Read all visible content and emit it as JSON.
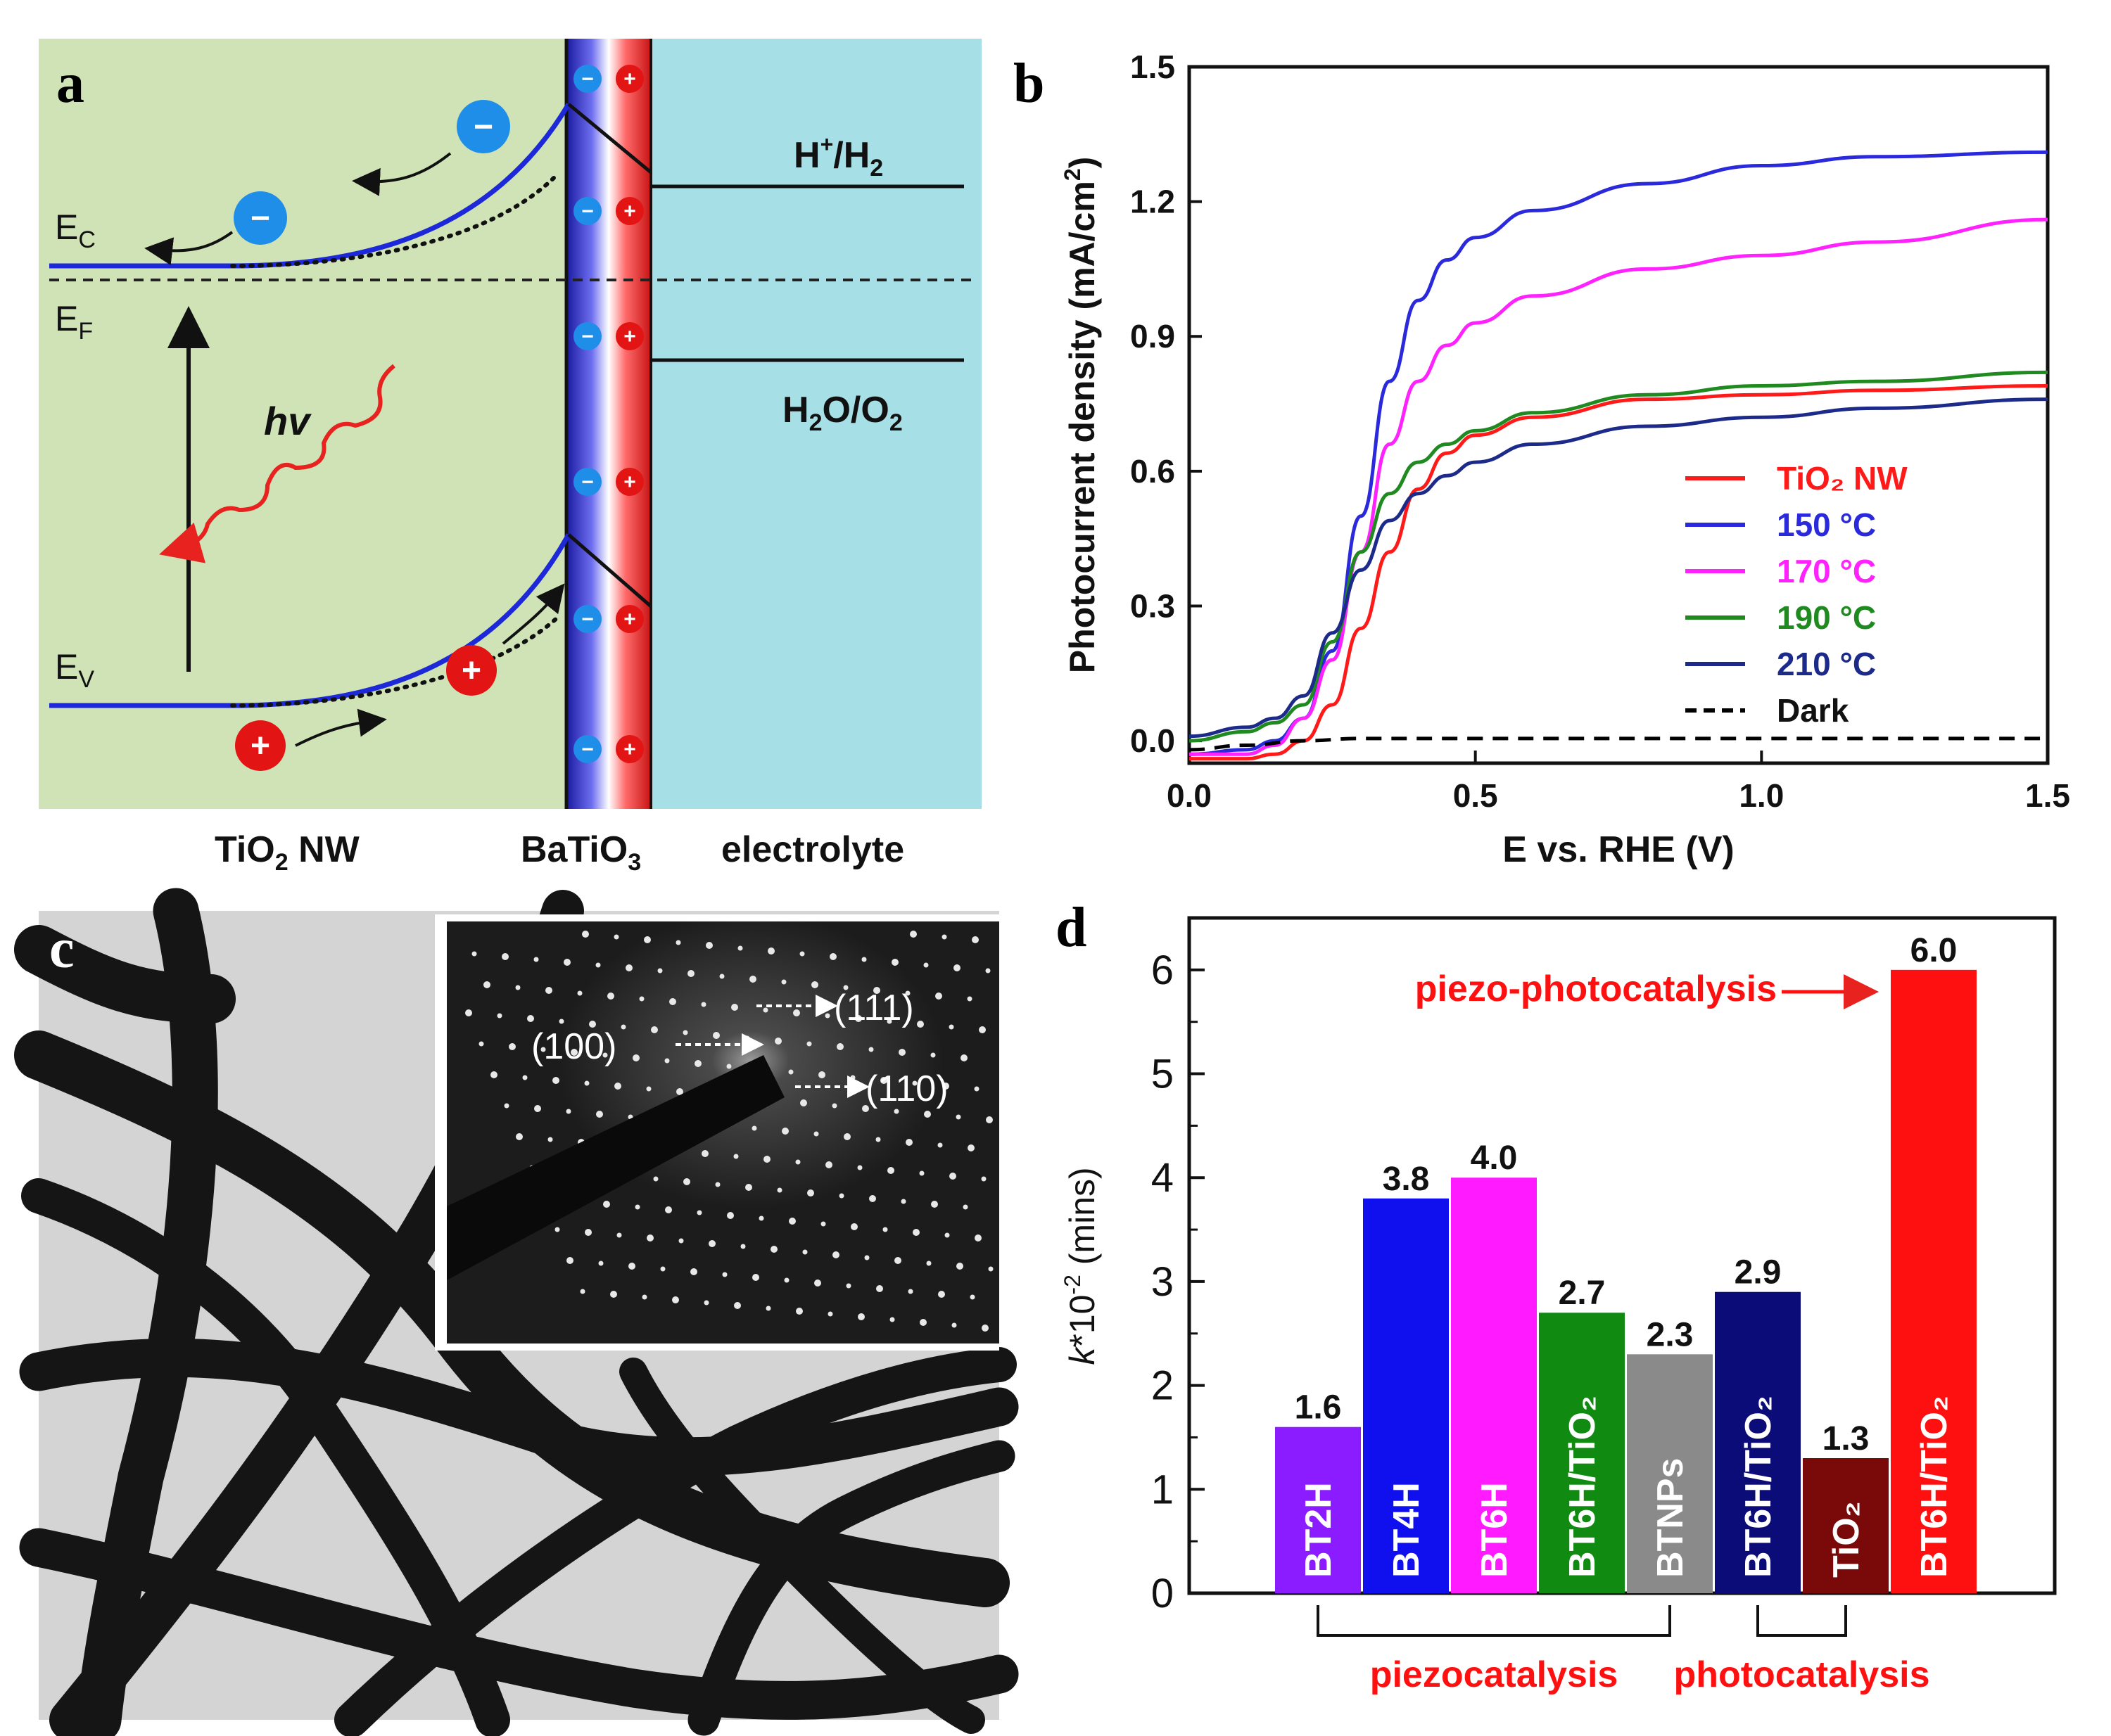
{
  "panels": {
    "a": {
      "letter": "a",
      "labels": {
        "ec": "E",
        "ec_sub": "C",
        "ef": "E",
        "ef_sub": "F",
        "ev": "E",
        "ev_sub": "V",
        "hv": "hv",
        "h_h2_a": "H",
        "h_h2_sup": "+",
        "h_h2_b": "/H",
        "h_h2_sub": "2",
        "h2o_a": "H",
        "h2o_sub1": "2",
        "h2o_b": "O/O",
        "h2o_sub2": "2",
        "tio2_a": "TiO",
        "tio2_sub": "2",
        "tio2_b": " NW",
        "batio3_a": "BaTiO",
        "batio3_sub": "3",
        "electrolyte": "electrolyte",
        "minus": "−",
        "plus": "+"
      },
      "colors": {
        "semiconductor": "#cfe3b6",
        "electrolyte": "#a6dfe6",
        "band": "#1d28d8",
        "photon": "#e8221e"
      }
    },
    "b": {
      "letter": "b"
    },
    "c": {
      "letter": "c",
      "saed_labels": [
        "(100)",
        "(111)",
        "(110)"
      ]
    },
    "d": {
      "letter": "d",
      "group_labels": {
        "piezo": "piezocatalysis",
        "photo": "photocatalysis"
      },
      "annotation": "piezo-photocatalysis",
      "ylabel_k": "k",
      "ylabel_rest": "*10",
      "ylabel_exp": "-2",
      "ylabel_units": " (mins)"
    }
  },
  "chart_data": [
    {
      "id": "b",
      "type": "line",
      "xlabel": "E vs. RHE (V)",
      "ylabel": "Photocurrent density (mA/cm",
      "ylabel_sup": "2",
      "ylabel_end": ")",
      "xlim": [
        0,
        1.5
      ],
      "ylim": [
        -0.05,
        1.5
      ],
      "xticks": [
        0.0,
        0.5,
        1.0,
        1.5
      ],
      "xtick_labels": [
        "0.0",
        "0.5",
        "1.0",
        "1.5"
      ],
      "yticks": [
        0.0,
        0.3,
        0.6,
        0.9,
        1.2,
        1.5
      ],
      "ytick_labels": [
        "0.0",
        "0.3",
        "0.6",
        "0.9",
        "1.2",
        "1.5"
      ],
      "legend_position": "right",
      "series": [
        {
          "name": "TiO₂ NW",
          "color": "#ff1a1a",
          "dash": false,
          "x": [
            0.0,
            0.1,
            0.15,
            0.2,
            0.25,
            0.3,
            0.35,
            0.4,
            0.45,
            0.5,
            0.6,
            0.8,
            1.0,
            1.2,
            1.5
          ],
          "y": [
            -0.04,
            -0.04,
            -0.03,
            0.0,
            0.08,
            0.25,
            0.42,
            0.56,
            0.64,
            0.68,
            0.72,
            0.76,
            0.77,
            0.78,
            0.79
          ]
        },
        {
          "name": "150 °C",
          "color": "#2a2adc",
          "dash": false,
          "x": [
            0.0,
            0.1,
            0.15,
            0.2,
            0.25,
            0.3,
            0.35,
            0.4,
            0.45,
            0.5,
            0.6,
            0.8,
            1.0,
            1.2,
            1.5
          ],
          "y": [
            -0.03,
            -0.02,
            0.0,
            0.05,
            0.2,
            0.5,
            0.8,
            0.98,
            1.07,
            1.12,
            1.18,
            1.24,
            1.28,
            1.3,
            1.31
          ]
        },
        {
          "name": "170 °C",
          "color": "#ff22ff",
          "dash": false,
          "x": [
            0.0,
            0.1,
            0.15,
            0.2,
            0.25,
            0.3,
            0.35,
            0.4,
            0.45,
            0.5,
            0.6,
            0.8,
            1.0,
            1.2,
            1.5
          ],
          "y": [
            -0.03,
            -0.03,
            -0.01,
            0.05,
            0.18,
            0.42,
            0.66,
            0.8,
            0.88,
            0.93,
            0.99,
            1.05,
            1.08,
            1.11,
            1.16
          ]
        },
        {
          "name": "190 °C",
          "color": "#1f8a1f",
          "dash": false,
          "x": [
            0.0,
            0.1,
            0.15,
            0.2,
            0.25,
            0.3,
            0.35,
            0.4,
            0.45,
            0.5,
            0.6,
            0.8,
            1.0,
            1.2,
            1.5
          ],
          "y": [
            0.0,
            0.02,
            0.04,
            0.08,
            0.22,
            0.42,
            0.55,
            0.62,
            0.66,
            0.69,
            0.73,
            0.77,
            0.79,
            0.8,
            0.82
          ]
        },
        {
          "name": "210 °C",
          "color": "#1c2a8a",
          "dash": false,
          "x": [
            0.0,
            0.1,
            0.15,
            0.2,
            0.25,
            0.3,
            0.35,
            0.4,
            0.45,
            0.5,
            0.6,
            0.8,
            1.0,
            1.2,
            1.5
          ],
          "y": [
            0.01,
            0.03,
            0.05,
            0.1,
            0.24,
            0.38,
            0.49,
            0.55,
            0.59,
            0.62,
            0.66,
            0.7,
            0.72,
            0.74,
            0.76
          ]
        },
        {
          "name": "Dark",
          "color": "#000000",
          "dash": true,
          "x": [
            0.0,
            0.1,
            0.2,
            0.3,
            0.5,
            1.0,
            1.5
          ],
          "y": [
            -0.02,
            -0.01,
            0.0,
            0.005,
            0.005,
            0.005,
            0.005
          ]
        }
      ]
    },
    {
      "id": "d",
      "type": "bar",
      "ylim": [
        0,
        6.5
      ],
      "yticks": [
        0,
        1,
        2,
        3,
        4,
        5,
        6
      ],
      "ytick_labels": [
        "0",
        "1",
        "2",
        "3",
        "4",
        "5",
        "6"
      ],
      "categories": [
        "BT2H",
        "BT4H",
        "BT6H",
        "BT6H/TiO₂",
        "BTNPs",
        "BT6H/TiO₂",
        "TiO₂",
        "BT6H/TiO₂"
      ],
      "values": [
        1.6,
        3.8,
        4.0,
        2.7,
        2.3,
        2.9,
        1.3,
        6.0
      ],
      "value_labels": [
        "1.6",
        "3.8",
        "4.0",
        "2.7",
        "2.3",
        "2.9",
        "1.3",
        "6.0"
      ],
      "colors": [
        "#8a1cff",
        "#1010ee",
        "#ff1aff",
        "#118a11",
        "#8a8a8a",
        "#0c0c78",
        "#7a0a0a",
        "#ff1010"
      ],
      "groups": [
        {
          "label": "piezocatalysis",
          "from": 0,
          "to": 4
        },
        {
          "label": "photocatalysis",
          "from": 5,
          "to": 6
        }
      ]
    }
  ]
}
